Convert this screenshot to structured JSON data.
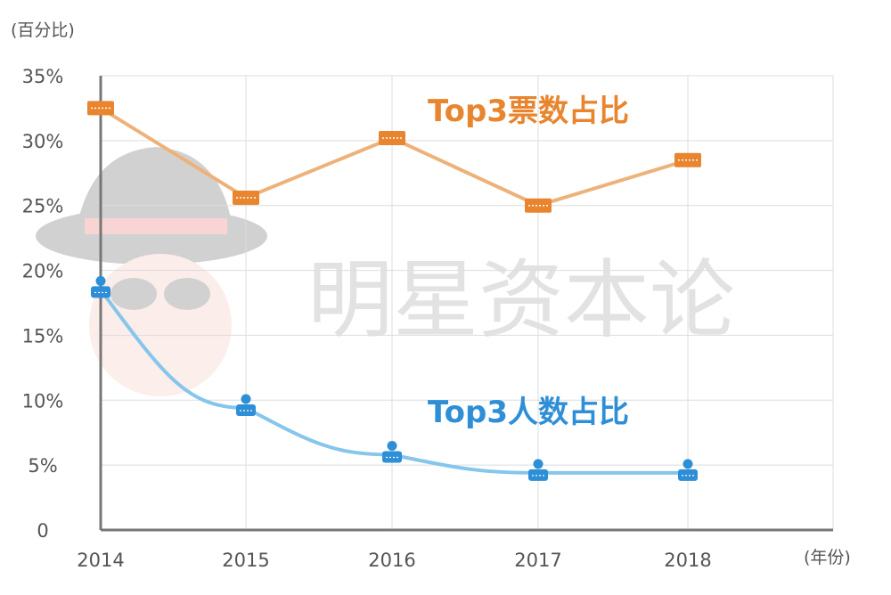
{
  "chart_data": {
    "type": "line",
    "y_unit": "(百分比)",
    "x_unit": "(年份)",
    "categories": [
      "2014",
      "2015",
      "2016",
      "2017",
      "2018"
    ],
    "y_ticks": [
      "0",
      "5%",
      "10%",
      "15%",
      "20%",
      "25%",
      "30%",
      "35%"
    ],
    "y_tick_values": [
      0,
      5,
      10,
      15,
      20,
      25,
      30,
      35
    ],
    "ylim": [
      0,
      35
    ],
    "grid": true,
    "series": [
      {
        "name": "Top3票数占比",
        "values": [
          32.5,
          25.6,
          30.2,
          25.0,
          28.5
        ],
        "color": "#E8852E",
        "line_color": "#EDB27A"
      },
      {
        "name": "Top3人数占比",
        "values": [
          18.5,
          9.4,
          5.8,
          4.4,
          4.4
        ],
        "color": "#2E8FD6",
        "line_color": "#86C5EC"
      }
    ]
  },
  "watermark": {
    "text": "明星资本论",
    "icon": "detective-hat-logo"
  }
}
